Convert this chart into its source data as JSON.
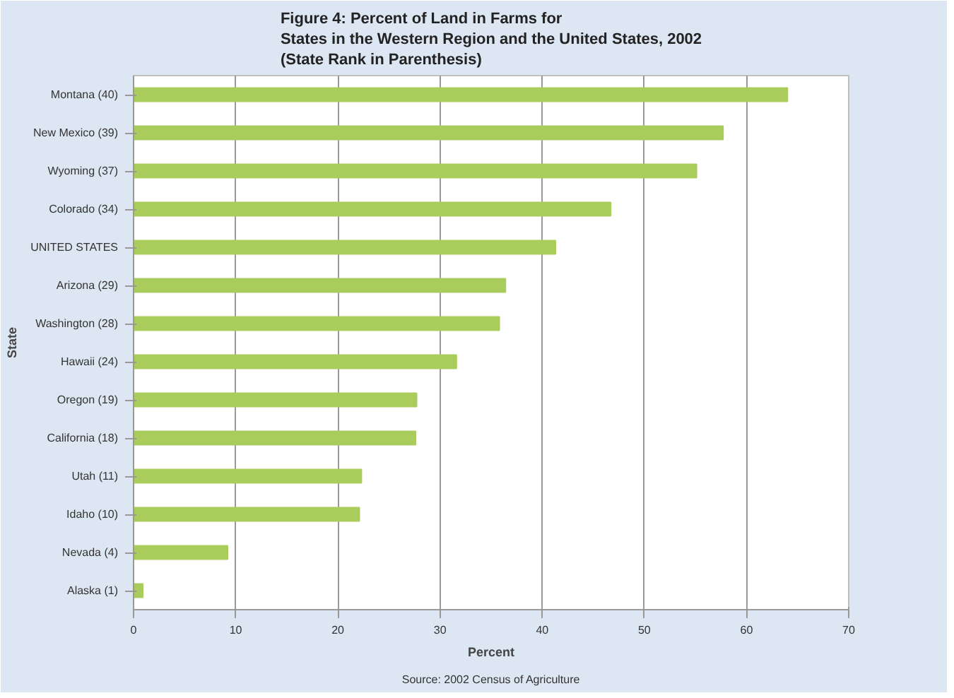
{
  "chart_data": {
    "type": "bar",
    "orientation": "horizontal",
    "title": "Figure 4: Percent of Land in Farms for\nStates in the Western Region and the United States, 2002\n(State Rank in Parenthesis)",
    "categories": [
      "Montana (40)",
      "New Mexico (39)",
      "Wyoming (37)",
      "Colorado (34)",
      "UNITED STATES",
      "Arizona (29)",
      "Washington (28)",
      "Hawaii (24)",
      "Oregon (19)",
      "California (18)",
      "Utah (11)",
      "Idaho (10)",
      "Nevada (4)",
      "Alaska (1)"
    ],
    "values": [
      64,
      57.7,
      55.1,
      46.7,
      41.3,
      36.4,
      35.8,
      31.6,
      27.7,
      27.6,
      22.3,
      22.1,
      9.2,
      0.9
    ],
    "color": "#a9cc5c",
    "xlim": [
      0,
      70
    ],
    "xticks": [
      0,
      10,
      20,
      30,
      40,
      50,
      60,
      70
    ],
    "xlabel": "Percent",
    "ylabel": "State",
    "grid": "x",
    "annotations": [
      "Source: 2002 Census of Agriculture"
    ]
  }
}
